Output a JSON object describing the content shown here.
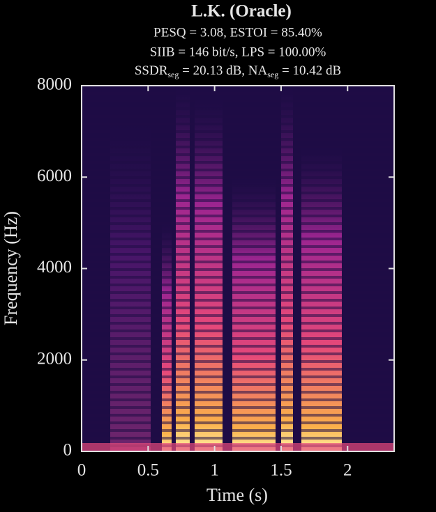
{
  "chart_data": {
    "type": "spectrogram",
    "title": "L.K.  (Oracle)",
    "subtitle": [
      "PESQ = 3.08, ESTOI = 85.40%",
      "SIIB = 146 bit/s, LPS = 100.00%",
      [
        "SSDR",
        "seg",
        " = 20.13 dB, NA",
        "seg",
        " = 10.42 dB"
      ]
    ],
    "x_label": "Time (s)",
    "y_label": "Frequency (Hz)",
    "xlim": [
      0,
      2.35
    ],
    "xticks": [
      0,
      0.5,
      1,
      1.5,
      2
    ],
    "ylim": [
      0,
      8000
    ],
    "yticks": [
      0,
      2000,
      4000,
      6000,
      8000
    ]
  }
}
